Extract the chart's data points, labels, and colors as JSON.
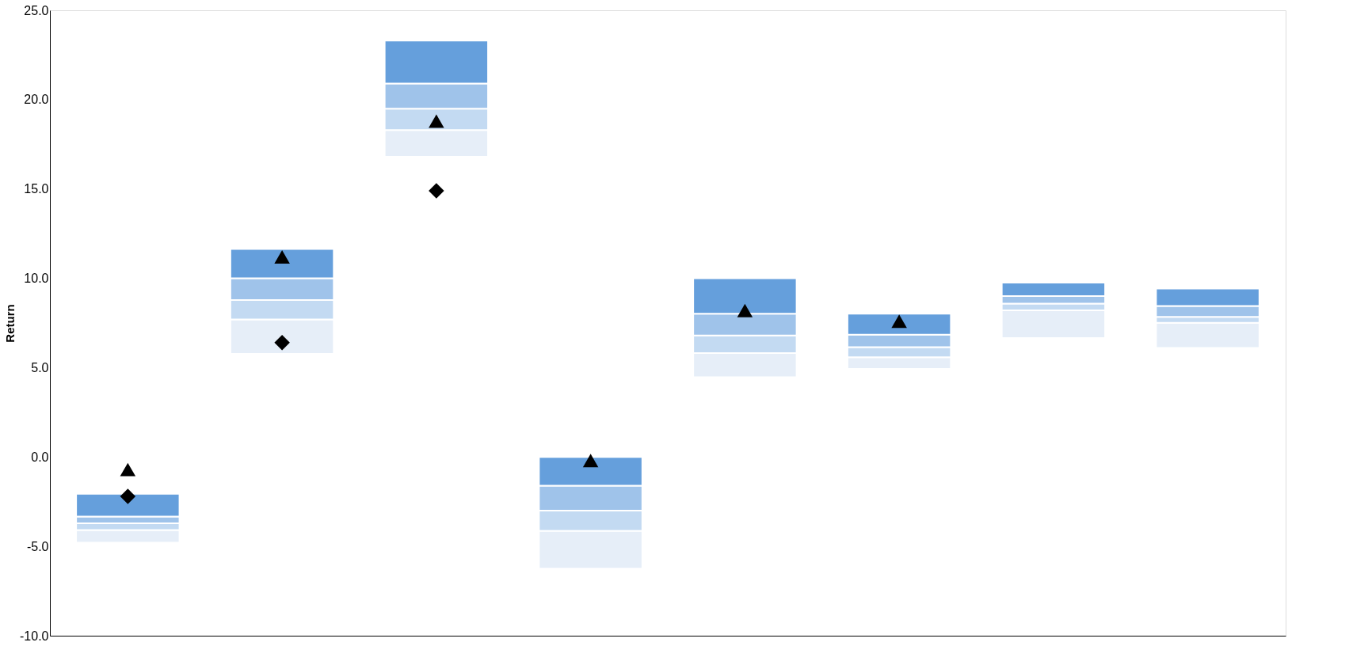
{
  "chart_data": {
    "type": "bar",
    "ylabel": "Return",
    "categories": [
      null,
      null,
      null,
      null,
      null,
      null,
      null,
      null
    ],
    "series": [
      {
        "color": "#e6eef8",
        "base": [
          -4.79,
          5.77,
          16.8,
          -6.24,
          4.46,
          4.93,
          6.66,
          6.1
        ],
        "values": [
          0.71,
          1.93,
          1.5,
          2.11,
          1.36,
          0.65,
          1.55,
          1.41
        ]
      },
      {
        "color": "#c3daf2",
        "base": [
          -4.08,
          7.7,
          18.3,
          -4.13,
          5.82,
          5.58,
          8.21,
          7.51
        ],
        "values": [
          0.37,
          1.08,
          1.2,
          1.13,
          0.98,
          0.57,
          0.38,
          0.33
        ]
      },
      {
        "color": "#9fc3ea",
        "base": [
          -3.71,
          8.78,
          19.5,
          -3.0,
          6.8,
          6.15,
          8.59,
          7.84
        ],
        "values": [
          0.38,
          1.22,
          1.4,
          1.4,
          1.22,
          0.7,
          0.42,
          0.61
        ]
      },
      {
        "color": "#659fdc",
        "base": [
          -3.33,
          10.0,
          20.9,
          -1.6,
          8.02,
          6.85,
          9.01,
          8.45
        ],
        "values": [
          1.27,
          1.64,
          2.4,
          1.6,
          1.98,
          1.17,
          0.75,
          0.98
        ]
      },
      {
        "type": "scatter",
        "marker": "diamond",
        "color": "#000000",
        "values": [
          -2.2,
          6.4,
          14.9,
          null,
          null,
          null,
          null,
          null
        ]
      },
      {
        "type": "scatter",
        "marker": "triangle",
        "color": "#000000",
        "values": [
          -0.7,
          11.2,
          18.8,
          -0.2,
          8.2,
          7.6,
          null,
          null
        ]
      }
    ],
    "ylim": [
      -10,
      25
    ],
    "yticks": [
      {
        "value": -10,
        "label": "-10.0"
      },
      {
        "value": -5,
        "label": "-5.0"
      },
      {
        "value": 0,
        "label": "0.0"
      },
      {
        "value": 5,
        "label": "5.0"
      },
      {
        "value": 10,
        "label": "10.0"
      },
      {
        "value": 15,
        "label": "15.0"
      },
      {
        "value": 20,
        "label": "20.0"
      },
      {
        "value": 25,
        "label": "25.0"
      }
    ],
    "grid": false
  }
}
